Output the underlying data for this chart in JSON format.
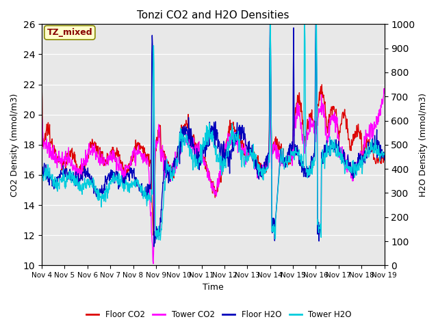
{
  "title": "Tonzi CO2 and H2O Densities",
  "xlabel": "Time",
  "ylabel_left": "CO2 Density (mmol/m3)",
  "ylabel_right": "H2O Density (mmol/m3)",
  "ylim_left": [
    10,
    26
  ],
  "ylim_right": [
    0,
    1000
  ],
  "annotation": "TZ_mixed",
  "annotation_color": "#880000",
  "annotation_bg": "#ffffcc",
  "annotation_border": "#888800",
  "colors": {
    "floor_co2": "#dd0000",
    "tower_co2": "#ff00ff",
    "floor_h2o": "#0000bb",
    "tower_h2o": "#00ccdd"
  },
  "legend_labels": [
    "Floor CO2",
    "Tower CO2",
    "Floor H2O",
    "Tower H2O"
  ],
  "xtick_labels": [
    "Nov 4",
    "Nov 5",
    "Nov 6",
    "Nov 7",
    "Nov 8",
    "Nov 9",
    "Nov 10",
    "Nov 11",
    "Nov 12",
    "Nov 13",
    "Nov 14",
    "Nov 15",
    "Nov 16",
    "Nov 17",
    "Nov 18",
    "Nov 19"
  ],
  "background_color": "#e8e8e8",
  "linewidth": 1.0
}
